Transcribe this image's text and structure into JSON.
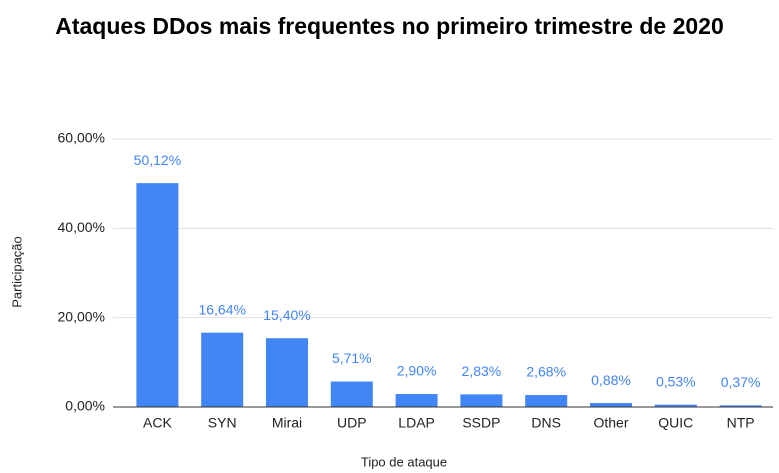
{
  "chart_data": {
    "type": "bar",
    "title": "Ataques DDos mais frequentes no primeiro trimestre de 2020",
    "x_label": "Tipo de ataque",
    "y_label": "Participação",
    "categories": [
      "ACK",
      "SYN",
      "Mirai",
      "UDP",
      "LDAP",
      "SSDP",
      "DNS",
      "Other",
      "QUIC",
      "NTP"
    ],
    "values": [
      50.12,
      16.64,
      15.4,
      5.71,
      2.9,
      2.83,
      2.68,
      0.88,
      0.53,
      0.37
    ],
    "value_labels": [
      "50,12%",
      "16,64%",
      "15,40%",
      "5,71%",
      "2,90%",
      "2,83%",
      "2,68%",
      "0,88%",
      "0,53%",
      "0,37%"
    ],
    "color": "#4285f4",
    "ylim": [
      0,
      60
    ],
    "yticks": [
      {
        "value": 0,
        "label": "0,00%"
      },
      {
        "value": 20,
        "label": "20,00%"
      },
      {
        "value": 40,
        "label": "40,00%"
      },
      {
        "value": 60,
        "label": "60,00%"
      }
    ],
    "grid": true
  }
}
